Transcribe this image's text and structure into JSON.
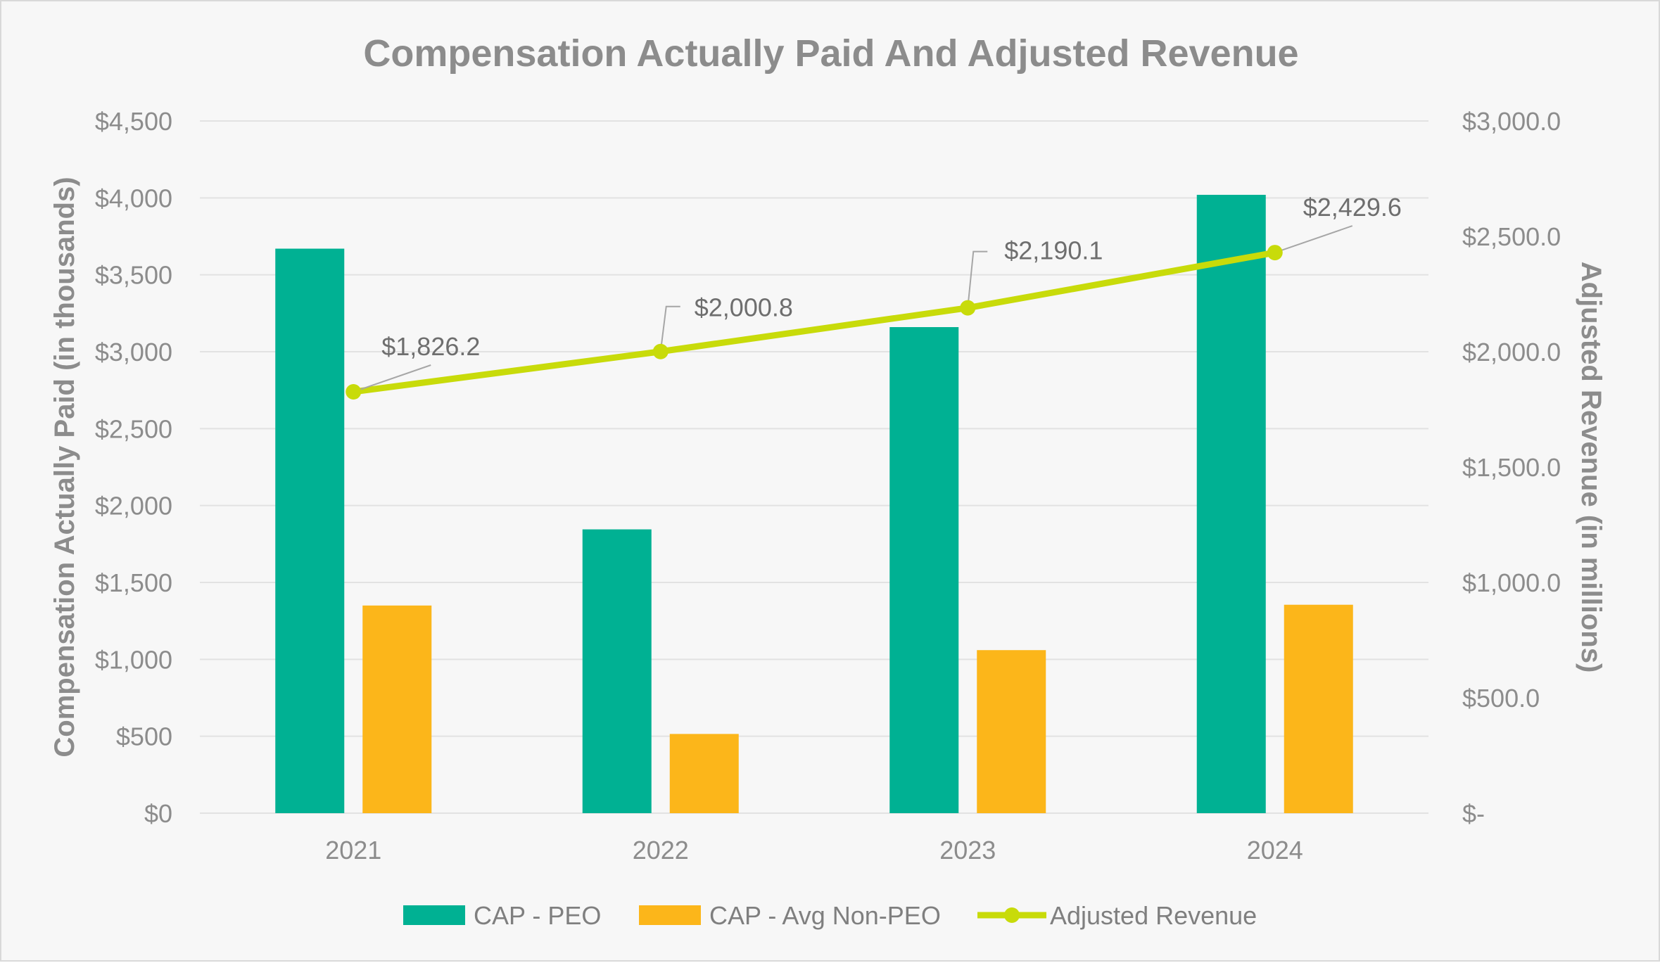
{
  "colors": {
    "peo": "#00b193",
    "non_peo": "#fcb61a",
    "revenue": "#c8db0a",
    "leader": "#a6a6a6"
  },
  "chart_data": {
    "type": "bar",
    "title": "Compensation Actually Paid And Adjusted Revenue",
    "categories": [
      "2021",
      "2022",
      "2023",
      "2024"
    ],
    "series": [
      {
        "name": "CAP - PEO",
        "type": "bar",
        "axis": "left",
        "values": [
          3670,
          1845,
          3160,
          4020
        ]
      },
      {
        "name": "CAP - Avg Non-PEO",
        "type": "bar",
        "axis": "left",
        "values": [
          1350,
          515,
          1060,
          1355
        ]
      },
      {
        "name": "Adjusted Revenue",
        "type": "line",
        "axis": "right",
        "values": [
          1826.2,
          2000.8,
          2190.1,
          2429.6
        ],
        "labels": [
          "$1,826.2",
          "$2,000.8",
          "$2,190.1",
          "$2,429.6"
        ]
      }
    ],
    "ylabel": "Compensation Actually Paid (in thousands)",
    "y2label": "Adjusted Revenue (in millions)",
    "ylim": [
      0,
      4500
    ],
    "y2lim": [
      0,
      3000
    ],
    "yticks": [
      "$0",
      "$500",
      "$1,000",
      "$1,500",
      "$2,000",
      "$2,500",
      "$3,000",
      "$3,500",
      "$4,000",
      "$4,500"
    ],
    "y2ticks": [
      "$-",
      "$500.0",
      "$1,000.0",
      "$1,500.0",
      "$2,000.0",
      "$2,500.0",
      "$3,000.0"
    ],
    "grid": true,
    "legend": "bottom"
  }
}
